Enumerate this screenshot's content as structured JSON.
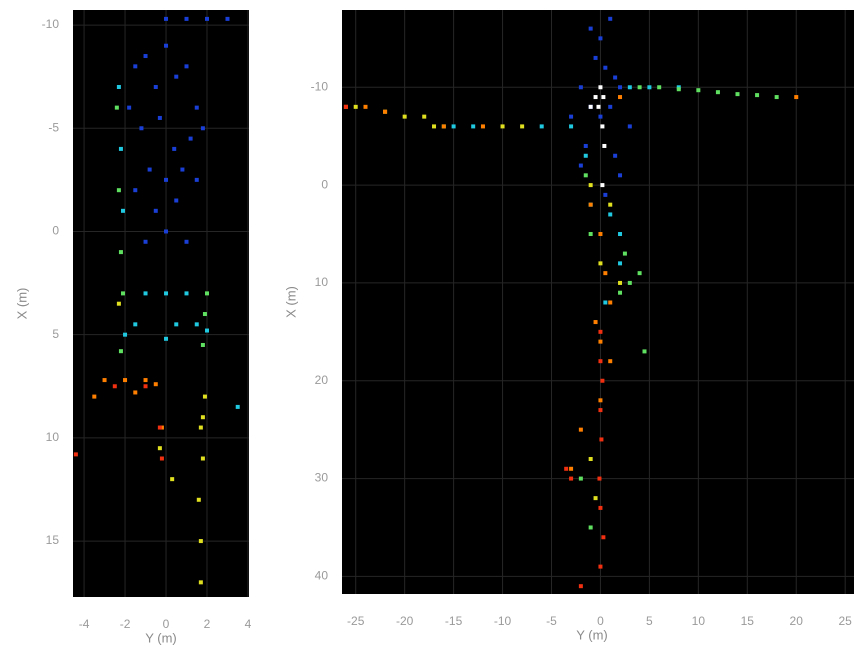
{
  "chart_data": [
    {
      "type": "scatter",
      "xlabel": "Y (m)",
      "ylabel": "X (m)",
      "xlim": [
        -4.54,
        4.05
      ],
      "ylim": [
        -10.73,
        17.71
      ],
      "y_reversed": true,
      "grid": true,
      "background": "#000000",
      "xticks": [
        -4,
        -2,
        0,
        2,
        4
      ],
      "yticks": [
        -10,
        -5,
        0,
        5,
        10,
        15
      ],
      "series": [
        {
          "color": "#1a3fd6",
          "x": [
            -1.5,
            -1,
            -0.5,
            0,
            0.5,
            1,
            1.5,
            -1.2,
            -0.3,
            0.4,
            1.2,
            -0.8,
            0,
            0.8,
            -0.5,
            0.5,
            -1.8,
            1.8,
            -1.5,
            1.5,
            0,
            -1,
            1,
            0,
            1,
            2,
            3
          ],
          "values": [
            -8,
            -8.5,
            -7,
            -9,
            -7.5,
            -8,
            -6,
            -5,
            -5.5,
            -4,
            -4.5,
            -3,
            -2.5,
            -3,
            -1,
            -1.5,
            -6,
            -5,
            -2,
            -2.5,
            0,
            0.5,
            0.5,
            -10.3,
            -10.3,
            -10.3,
            -10.3
          ]
        },
        {
          "color": "#20c8e0",
          "x": [
            -2.3,
            -2.2,
            -2.1,
            -1,
            0,
            1,
            -1.5,
            0.5,
            1.5,
            -2,
            0,
            2,
            3.5
          ],
          "values": [
            -7,
            -4,
            -1,
            3,
            3,
            3,
            4.5,
            4.5,
            4.5,
            5,
            5.2,
            4.8,
            8.5
          ]
        },
        {
          "color": "#60e060",
          "x": [
            -2.4,
            -2.3,
            -2.2,
            -2.1,
            2,
            1.9,
            1.8,
            -2.2
          ],
          "values": [
            -6,
            -2,
            1,
            3,
            3,
            4,
            5.5,
            5.8
          ]
        },
        {
          "color": "#e0e020",
          "x": [
            -2.3,
            1.9,
            1.8,
            1.7,
            1.8,
            1.6,
            1.7,
            -0.3,
            0.3,
            1.7
          ],
          "values": [
            3.5,
            8,
            9,
            9.5,
            11,
            13,
            15,
            10.5,
            12,
            17
          ]
        },
        {
          "color": "#ff8000",
          "x": [
            -3,
            -2,
            -1,
            -0.5,
            -0.2,
            -3.5,
            -1.5
          ],
          "values": [
            7.2,
            7.2,
            7.2,
            7.4,
            9.5,
            8,
            7.8
          ]
        },
        {
          "color": "#f03010",
          "x": [
            -2.5,
            -1,
            -0.3,
            -4.4,
            -0.2
          ],
          "values": [
            7.5,
            7.5,
            9.5,
            10.8,
            11
          ]
        }
      ]
    },
    {
      "type": "scatter",
      "xlabel": "Y (m)",
      "ylabel": "X (m)",
      "xlim": [
        -26.4,
        25.9
      ],
      "ylim": [
        -17.9,
        41.8
      ],
      "y_reversed": true,
      "grid": true,
      "background": "#000000",
      "xticks": [
        -25,
        -20,
        -15,
        -10,
        -5,
        0,
        5,
        10,
        15,
        20,
        25
      ],
      "yticks": [
        -10,
        0,
        10,
        20,
        30,
        40
      ],
      "series": [
        {
          "color": "#1a3fd6",
          "x": [
            -1,
            0,
            1,
            -0.5,
            0.5,
            1.5,
            -2,
            2,
            -1,
            1,
            0,
            -3,
            3,
            -1.5,
            1.5,
            2,
            -2,
            0.5
          ],
          "values": [
            -16,
            -15,
            -17,
            -13,
            -12,
            -11,
            -10,
            -10,
            -8,
            -8,
            -7,
            -7,
            -6,
            -4,
            -3,
            -1,
            -2,
            1
          ]
        },
        {
          "color": "#ffffff",
          "x": [
            0,
            0.3,
            -0.2,
            0.2,
            0.4,
            -1,
            -0.5,
            0.2
          ],
          "values": [
            -10,
            -9,
            -8,
            -6,
            -4,
            -8,
            -9,
            0
          ]
        },
        {
          "color": "#20c8e0",
          "x": [
            -6,
            -3,
            -1.5,
            -1,
            1,
            2,
            3,
            5,
            8,
            -15,
            -13,
            0.5,
            2
          ],
          "values": [
            -6,
            -6,
            -3,
            2,
            3,
            5,
            -10,
            -10,
            -10,
            -6,
            -6,
            12,
            8
          ]
        },
        {
          "color": "#60e060",
          "x": [
            4,
            6,
            8,
            10,
            12,
            14,
            16,
            18,
            -1.5,
            -1,
            2.5,
            3,
            4,
            4.5,
            -16,
            -2,
            -1,
            2
          ],
          "values": [
            -10,
            -10,
            -9.8,
            -9.7,
            -9.5,
            -9.3,
            -9.2,
            -9,
            -1,
            5,
            7,
            10,
            9,
            17,
            -6,
            30,
            35,
            11
          ]
        },
        {
          "color": "#e0e020",
          "x": [
            -25,
            -22,
            -20,
            -18,
            -17,
            -8,
            -10,
            -1,
            0,
            1,
            2,
            -1,
            -0.5
          ],
          "values": [
            -8,
            -7.5,
            -7,
            -7,
            -6,
            -6,
            -6,
            0,
            8,
            2,
            10,
            28,
            32
          ]
        },
        {
          "color": "#ff8000",
          "x": [
            -26,
            -24,
            -22,
            -16,
            -12,
            -1,
            0,
            0.5,
            1,
            -0.5,
            0,
            1,
            0,
            -2,
            20,
            -3,
            2
          ],
          "values": [
            -8,
            -8,
            -7.5,
            -6,
            -6,
            2,
            5,
            9,
            12,
            14,
            16,
            18,
            22,
            25,
            -9,
            29,
            -9
          ]
        },
        {
          "color": "#f03010",
          "x": [
            -26,
            0,
            0,
            0.2,
            0,
            0.1,
            -0.1,
            0,
            0.3,
            0,
            -3.5,
            -3,
            -2
          ],
          "values": [
            -8,
            15,
            18,
            20,
            23,
            26,
            30,
            33,
            36,
            39,
            29,
            30,
            41
          ]
        }
      ]
    }
  ]
}
